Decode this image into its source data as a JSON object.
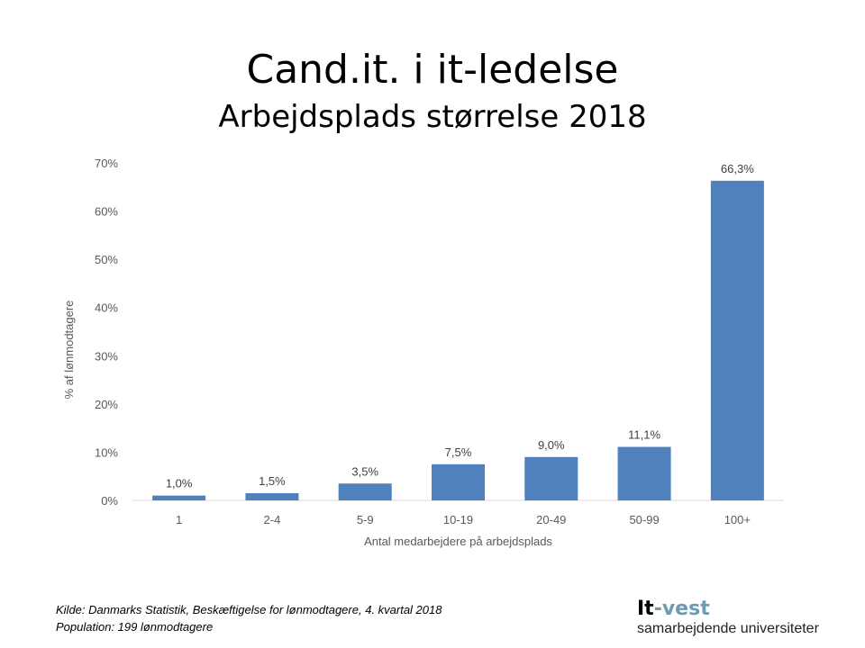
{
  "chart_data": {
    "type": "bar",
    "title": "Cand.it. i it-ledelse",
    "subtitle": "Arbejdsplads størrelse 2018",
    "xlabel": "Antal medarbejdere på arbejdsplads",
    "ylabel": "% af lønmodtagere",
    "categories": [
      "1",
      "2-4",
      "5-9",
      "10-19",
      "20-49",
      "50-99",
      "100+"
    ],
    "values": [
      1.0,
      1.5,
      3.5,
      7.5,
      9.0,
      11.1,
      66.3
    ],
    "data_labels": [
      "1,0%",
      "1,5%",
      "3,5%",
      "7,5%",
      "9,0%",
      "11,1%",
      "66,3%"
    ],
    "ylim": [
      0,
      70
    ],
    "yticks": [
      "0%",
      "10%",
      "20%",
      "30%",
      "40%",
      "50%",
      "60%",
      "70%"
    ],
    "grid": false,
    "bar_color": "#4f81bd"
  },
  "footer": {
    "source": "Kilde: Danmarks Statistik, Beskæftigelse for lønmodtagere, 4. kvartal 2018",
    "population": "Population: 199 lønmodtagere"
  },
  "logo": {
    "part1": "It",
    "part2": "-vest",
    "tagline": "samarbejdende universiteter"
  }
}
